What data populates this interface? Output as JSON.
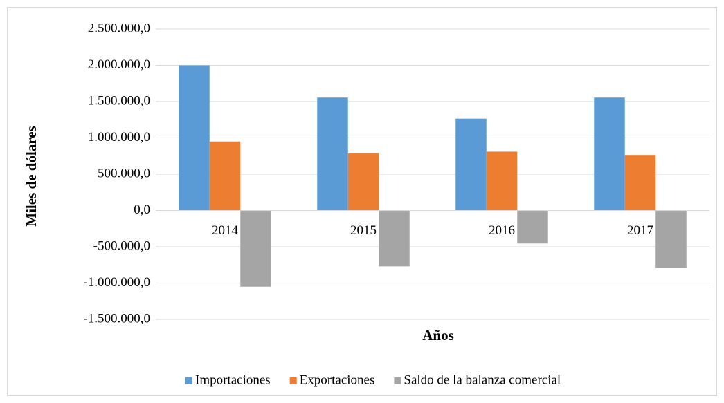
{
  "chart_data": {
    "type": "bar",
    "categories": [
      "2014",
      "2015",
      "2016",
      "2017"
    ],
    "series": [
      {
        "name": "Importaciones",
        "color": "#5b9bd5",
        "values": [
          2000000,
          1555000,
          1265000,
          1555000
        ]
      },
      {
        "name": "Exportaciones",
        "color": "#ed7d31",
        "values": [
          950000,
          785000,
          810000,
          765000
        ]
      },
      {
        "name": "Saldo de la balanza comercial",
        "color": "#a5a5a5",
        "values": [
          -1050000,
          -770000,
          -455000,
          -790000
        ]
      }
    ],
    "y_label": "Miles de dólares",
    "x_label": "Años",
    "ylim": [
      -1500000,
      2500000
    ],
    "yticks": [
      {
        "value": -1500000,
        "label": "-1.500.000,0"
      },
      {
        "value": -1000000,
        "label": "-1.000.000,0"
      },
      {
        "value": -500000,
        "label": "-500.000,0"
      },
      {
        "value": 0,
        "label": "0,0"
      },
      {
        "value": 500000,
        "label": "500.000,0"
      },
      {
        "value": 1000000,
        "label": "1.000.000,0"
      },
      {
        "value": 1500000,
        "label": "1.500.000,0"
      },
      {
        "value": 2000000,
        "label": "2.000.000,0"
      },
      {
        "value": 2500000,
        "label": "2.500.000,0"
      }
    ],
    "grid": true,
    "legend": "bottom"
  }
}
